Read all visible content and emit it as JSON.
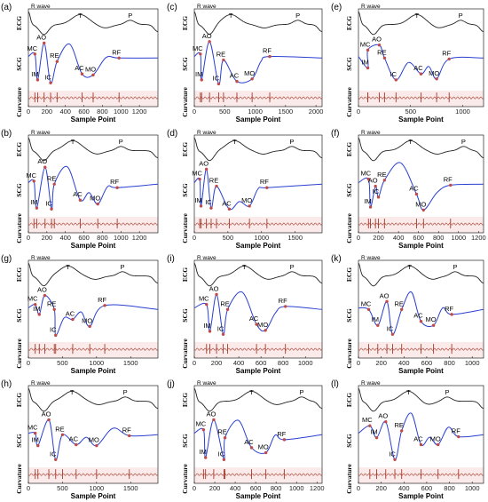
{
  "colors": {
    "ecg": "#222222",
    "scg": "#2a3fd1",
    "curv": "#a23a2a",
    "fiducial": "#c04a4a",
    "fill": "#fbeaea"
  },
  "chart_data": [
    {
      "type": "line",
      "panel_label": "(a)",
      "xlabel": "Sample Point",
      "ylabels": {
        "top": "ECG",
        "mid": "SCG",
        "bot": "Curvature"
      },
      "r_wave_label": "R wave",
      "xlim": [
        0,
        1400
      ],
      "xticks": [
        0,
        200,
        400,
        600,
        800,
        1000,
        1200
      ],
      "ecg_labels": [
        {
          "text": "T",
          "x": 560
        },
        {
          "text": "P",
          "x": 1100
        }
      ],
      "fiducials": [
        {
          "text": "IM",
          "x": 100,
          "y": 0.18
        },
        {
          "text": "MC",
          "x": 70,
          "y": 0.7
        },
        {
          "text": "AO",
          "x": 170,
          "y": 0.92
        },
        {
          "text": "IC",
          "x": 240,
          "y": 0.12
        },
        {
          "text": "RE",
          "x": 310,
          "y": 0.55
        },
        {
          "text": "AC",
          "x": 580,
          "y": 0.3
        },
        {
          "text": "MO",
          "x": 700,
          "y": 0.28
        },
        {
          "text": "RF",
          "x": 980,
          "y": 0.62
        }
      ]
    },
    {
      "type": "line",
      "panel_label": "(c)",
      "xlabel": "Sample Point",
      "ylabels": {
        "top": "ECG",
        "mid": "SCG",
        "bot": "Curvature"
      },
      "r_wave_label": "R wave",
      "xlim": [
        0,
        2100
      ],
      "xticks": [
        0,
        500,
        1000,
        1500,
        2000
      ],
      "ecg_labels": [
        {
          "text": "T",
          "x": 600
        },
        {
          "text": "P",
          "x": 1700
        }
      ],
      "fiducials": [
        {
          "text": "IM",
          "x": 120,
          "y": 0.18
        },
        {
          "text": "MC",
          "x": 100,
          "y": 0.7
        },
        {
          "text": "AO",
          "x": 250,
          "y": 0.95
        },
        {
          "text": "IC",
          "x": 400,
          "y": 0.1
        },
        {
          "text": "RE",
          "x": 480,
          "y": 0.58
        },
        {
          "text": "AC",
          "x": 700,
          "y": 0.15
        },
        {
          "text": "MO",
          "x": 950,
          "y": 0.2
        },
        {
          "text": "RF",
          "x": 1240,
          "y": 0.65
        }
      ]
    },
    {
      "type": "line",
      "panel_label": "(e)",
      "xlabel": "Sample Point",
      "ylabels": {
        "top": "ECG",
        "mid": "SCG",
        "bot": "Curvature"
      },
      "r_wave_label": "R wave",
      "xlim": [
        0,
        1200
      ],
      "xticks": [
        0,
        500,
        1000
      ],
      "ecg_labels": [
        {
          "text": "T",
          "x": 560
        },
        {
          "text": "P",
          "x": 980
        }
      ],
      "fiducials": [
        {
          "text": "IM",
          "x": 90,
          "y": 0.42
        },
        {
          "text": "MC",
          "x": 90,
          "y": 0.78
        },
        {
          "text": "AO",
          "x": 200,
          "y": 0.88
        },
        {
          "text": "IC",
          "x": 360,
          "y": 0.18
        },
        {
          "text": "RE",
          "x": 250,
          "y": 0.62
        },
        {
          "text": "AC",
          "x": 600,
          "y": 0.3
        },
        {
          "text": "MO",
          "x": 750,
          "y": 0.2
        },
        {
          "text": "RF",
          "x": 870,
          "y": 0.6
        }
      ]
    },
    {
      "type": "line",
      "panel_label": "(b)",
      "xlabel": "Sample Point",
      "ylabels": {
        "top": "ECG",
        "mid": "SCG",
        "bot": "Curvature"
      },
      "r_wave_label": "R wave",
      "xlim": [
        0,
        1400
      ],
      "xticks": [
        0,
        200,
        400,
        600,
        800,
        1000,
        1200
      ],
      "ecg_labels": [
        {
          "text": "T",
          "x": 480
        },
        {
          "text": "P",
          "x": 1000
        }
      ],
      "fiducials": [
        {
          "text": "IM",
          "x": 90,
          "y": 0.14
        },
        {
          "text": "MC",
          "x": 60,
          "y": 0.68
        },
        {
          "text": "AO",
          "x": 180,
          "y": 0.96
        },
        {
          "text": "IC",
          "x": 250,
          "y": 0.12
        },
        {
          "text": "RE",
          "x": 280,
          "y": 0.62
        },
        {
          "text": "AC",
          "x": 560,
          "y": 0.3
        },
        {
          "text": "MO",
          "x": 750,
          "y": 0.22
        },
        {
          "text": "RF",
          "x": 960,
          "y": 0.55
        }
      ]
    },
    {
      "type": "line",
      "panel_label": "(d)",
      "xlabel": "Sample Point",
      "ylabels": {
        "top": "ECG",
        "mid": "SCG",
        "bot": "Curvature"
      },
      "r_wave_label": "R wave",
      "xlim": [
        0,
        1900
      ],
      "xticks": [
        0,
        500,
        1000,
        1500
      ],
      "ecg_labels": [
        {
          "text": "T",
          "x": 600
        },
        {
          "text": "P",
          "x": 1450
        }
      ],
      "fiducials": [
        {
          "text": "IM",
          "x": 100,
          "y": 0.18
        },
        {
          "text": "MC",
          "x": 80,
          "y": 0.72
        },
        {
          "text": "AO",
          "x": 180,
          "y": 0.92
        },
        {
          "text": "IC",
          "x": 250,
          "y": 0.14
        },
        {
          "text": "RE",
          "x": 330,
          "y": 0.58
        },
        {
          "text": "AC",
          "x": 520,
          "y": 0.12
        },
        {
          "text": "MO",
          "x": 820,
          "y": 0.18
        },
        {
          "text": "RF",
          "x": 1080,
          "y": 0.55
        }
      ]
    },
    {
      "type": "line",
      "panel_label": "(f)",
      "xlabel": "Sample Point",
      "ylabels": {
        "top": "ECG",
        "mid": "SCG",
        "bot": "Curvature"
      },
      "r_wave_label": "R wave",
      "xlim": [
        0,
        1250
      ],
      "xticks": [
        0,
        200,
        400,
        600,
        800,
        1000,
        1200
      ],
      "ecg_labels": [
        {
          "text": "T",
          "x": 520
        },
        {
          "text": "P",
          "x": 1050
        }
      ],
      "fiducials": [
        {
          "text": "IM",
          "x": 120,
          "y": 0.16
        },
        {
          "text": "MC",
          "x": 100,
          "y": 0.72
        },
        {
          "text": "AO",
          "x": 170,
          "y": 0.58
        },
        {
          "text": "IC",
          "x": 200,
          "y": 0.36
        },
        {
          "text": "RE",
          "x": 260,
          "y": 0.7
        },
        {
          "text": "AC",
          "x": 580,
          "y": 0.42
        },
        {
          "text": "MO",
          "x": 650,
          "y": 0.1
        },
        {
          "text": "RF",
          "x": 920,
          "y": 0.6
        }
      ]
    },
    {
      "type": "line",
      "panel_label": "(g)",
      "xlabel": "Sample Point",
      "ylabels": {
        "top": "ECG",
        "mid": "SCG",
        "bot": "Curvature"
      },
      "r_wave_label": "R wave",
      "xlim": [
        0,
        1900
      ],
      "xticks": [
        0,
        500,
        1000,
        1500
      ],
      "ecg_labels": [
        {
          "text": "T",
          "x": 580
        },
        {
          "text": "P",
          "x": 1380
        }
      ],
      "fiducials": [
        {
          "text": "IM",
          "x": 160,
          "y": 0.52
        },
        {
          "text": "MC",
          "x": 100,
          "y": 0.72
        },
        {
          "text": "AO",
          "x": 240,
          "y": 0.9
        },
        {
          "text": "IC",
          "x": 400,
          "y": 0.1
        },
        {
          "text": "RE",
          "x": 380,
          "y": 0.62
        },
        {
          "text": "AC",
          "x": 650,
          "y": 0.42
        },
        {
          "text": "MO",
          "x": 900,
          "y": 0.28
        },
        {
          "text": "RF",
          "x": 1120,
          "y": 0.7
        }
      ]
    },
    {
      "type": "line",
      "panel_label": "(i)",
      "xlabel": "Sample Point",
      "ylabels": {
        "top": "ECG",
        "mid": "SCG",
        "bot": "Curvature"
      },
      "r_wave_label": "R wave",
      "xlim": [
        0,
        1150
      ],
      "xticks": [
        0,
        200,
        400,
        600,
        800,
        1000
      ],
      "ecg_labels": [
        {
          "text": "T",
          "x": 450
        },
        {
          "text": "P",
          "x": 880
        }
      ],
      "fiducials": [
        {
          "text": "IM",
          "x": 140,
          "y": 0.18
        },
        {
          "text": "MC",
          "x": 110,
          "y": 0.72
        },
        {
          "text": "AO",
          "x": 200,
          "y": 0.92
        },
        {
          "text": "IC",
          "x": 260,
          "y": 0.12
        },
        {
          "text": "RE",
          "x": 300,
          "y": 0.62
        },
        {
          "text": "AC",
          "x": 560,
          "y": 0.32
        },
        {
          "text": "MO",
          "x": 640,
          "y": 0.2
        },
        {
          "text": "RF",
          "x": 820,
          "y": 0.68
        }
      ]
    },
    {
      "type": "line",
      "panel_label": "(k)",
      "xlabel": "Sample Point",
      "ylabels": {
        "top": "ECG",
        "mid": "SCG",
        "bot": "Curvature"
      },
      "r_wave_label": "R wave",
      "xlim": [
        0,
        1100
      ],
      "xticks": [
        0,
        200,
        400,
        600,
        800,
        1000
      ],
      "ecg_labels": [
        {
          "text": "T",
          "x": 450
        },
        {
          "text": "P",
          "x": 850
        }
      ],
      "fiducials": [
        {
          "text": "IM",
          "x": 170,
          "y": 0.3
        },
        {
          "text": "MC",
          "x": 90,
          "y": 0.62
        },
        {
          "text": "AO",
          "x": 250,
          "y": 0.78
        },
        {
          "text": "IC",
          "x": 300,
          "y": 0.12
        },
        {
          "text": "RE",
          "x": 380,
          "y": 0.62
        },
        {
          "text": "AC",
          "x": 550,
          "y": 0.38
        },
        {
          "text": "MO",
          "x": 660,
          "y": 0.3
        },
        {
          "text": "RF",
          "x": 820,
          "y": 0.52
        }
      ]
    },
    {
      "type": "line",
      "panel_label": "(h)",
      "xlabel": "Sample Point",
      "ylabels": {
        "top": "ECG",
        "mid": "SCG",
        "bot": "Curvature"
      },
      "r_wave_label": "R wave",
      "xlim": [
        0,
        1900
      ],
      "xticks": [
        0,
        500,
        1000,
        1500
      ],
      "ecg_labels": [
        {
          "text": "T",
          "x": 640
        },
        {
          "text": "P",
          "x": 1420
        }
      ],
      "fiducials": [
        {
          "text": "IM",
          "x": 140,
          "y": 0.4
        },
        {
          "text": "MC",
          "x": 100,
          "y": 0.65
        },
        {
          "text": "AO",
          "x": 300,
          "y": 0.92
        },
        {
          "text": "IC",
          "x": 400,
          "y": 0.12
        },
        {
          "text": "RE",
          "x": 500,
          "y": 0.62
        },
        {
          "text": "AC",
          "x": 700,
          "y": 0.42
        },
        {
          "text": "MO",
          "x": 1000,
          "y": 0.4
        },
        {
          "text": "RF",
          "x": 1480,
          "y": 0.6
        }
      ]
    },
    {
      "type": "line",
      "panel_label": "(j)",
      "xlabel": "Sample Point",
      "ylabels": {
        "top": "ECG",
        "mid": "SCG",
        "bot": "Curvature"
      },
      "r_wave_label": "R wave",
      "xlim": [
        0,
        1250
      ],
      "xticks": [
        0,
        200,
        400,
        600,
        800,
        1000,
        1200
      ],
      "ecg_labels": [
        {
          "text": "T",
          "x": 560
        },
        {
          "text": "P",
          "x": 1050
        }
      ],
      "fiducials": [
        {
          "text": "IM",
          "x": 110,
          "y": 0.16
        },
        {
          "text": "MC",
          "x": 90,
          "y": 0.72
        },
        {
          "text": "AO",
          "x": 190,
          "y": 0.92
        },
        {
          "text": "IC",
          "x": 290,
          "y": 0.12
        },
        {
          "text": "RE",
          "x": 300,
          "y": 0.56
        },
        {
          "text": "AC",
          "x": 560,
          "y": 0.36
        },
        {
          "text": "MO",
          "x": 700,
          "y": 0.26
        },
        {
          "text": "RF",
          "x": 880,
          "y": 0.52
        }
      ]
    },
    {
      "type": "line",
      "panel_label": "(l)",
      "xlabel": "Sample Point",
      "ylabels": {
        "top": "ECG",
        "mid": "SCG",
        "bot": "Curvature"
      },
      "r_wave_label": "R wave",
      "xlim": [
        0,
        1100
      ],
      "xticks": [
        0,
        200,
        400,
        600,
        800,
        1000
      ],
      "ecg_labels": [
        {
          "text": "T",
          "x": 440
        },
        {
          "text": "P",
          "x": 780
        }
      ],
      "fiducials": [
        {
          "text": "IM",
          "x": 160,
          "y": 0.56
        },
        {
          "text": "MC",
          "x": 100,
          "y": 0.8
        },
        {
          "text": "AO",
          "x": 240,
          "y": 0.88
        },
        {
          "text": "IC",
          "x": 320,
          "y": 0.12
        },
        {
          "text": "RE",
          "x": 380,
          "y": 0.7
        },
        {
          "text": "AC",
          "x": 550,
          "y": 0.42
        },
        {
          "text": "MO",
          "x": 700,
          "y": 0.42
        },
        {
          "text": "RF",
          "x": 880,
          "y": 0.58
        }
      ]
    }
  ]
}
